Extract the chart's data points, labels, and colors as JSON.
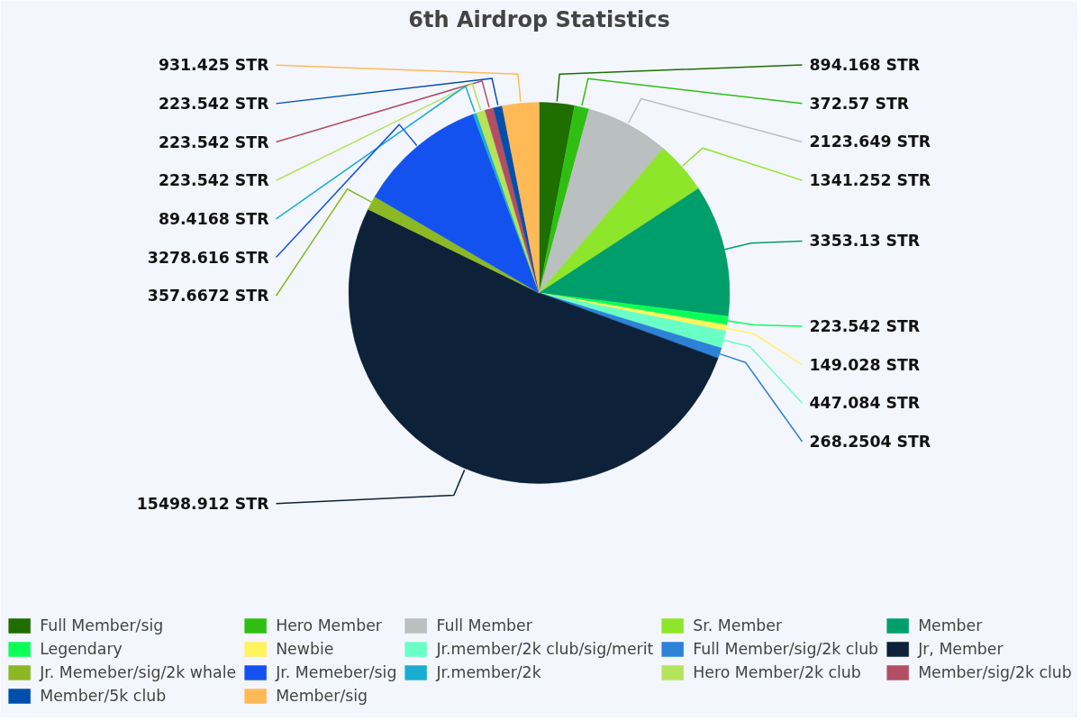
{
  "chart_data": {
    "type": "pie",
    "title": "6th Airdrop Statistics",
    "categories": [
      "Full Member/sig",
      "Hero Member",
      "Full Member",
      "Sr. Member",
      "Member",
      "Legendary",
      "Newbie",
      "Jr.member/2k club/sig/merit",
      "Full Member/sig/2k club",
      "Jr, Member",
      "Jr. Memeber/sig/2k whale",
      "Jr. Memeber/sig",
      "Jr.member/2k",
      "Hero Member/2k club",
      "Member/sig/2k club",
      "Member/5k club",
      "Member/sig"
    ],
    "values": [
      894.168,
      372.57,
      2123.649,
      1341.252,
      3353.13,
      223.542,
      149.028,
      447.084,
      268.2504,
      15498.912,
      357.6672,
      3278.616,
      89.4168,
      223.542,
      223.542,
      223.542,
      931.425
    ],
    "colors": [
      "#1e6e00",
      "#2fbf13",
      "#babfbf",
      "#8ee62a",
      "#009e6a",
      "#0aff57",
      "#fff35e",
      "#6affc6",
      "#2d82d8",
      "#0d2238",
      "#8bb824",
      "#1452ef",
      "#1aadd1",
      "#b5e35a",
      "#b34f62",
      "#004fac",
      "#ffba57"
    ],
    "value_labels": [
      "894.168 STR",
      "372.57 STR",
      "2123.649 STR",
      "1341.252 STR",
      "3353.13 STR",
      "223.542 STR",
      "149.028 STR",
      "447.084 STR",
      "268.2504 STR",
      "15498.912 STR",
      "357.6672 STR",
      "3278.616 STR",
      "89.4168 STR",
      "223.542 STR",
      "223.542 STR",
      "223.542 STR",
      "931.425 STR"
    ],
    "legend": "bottom"
  }
}
